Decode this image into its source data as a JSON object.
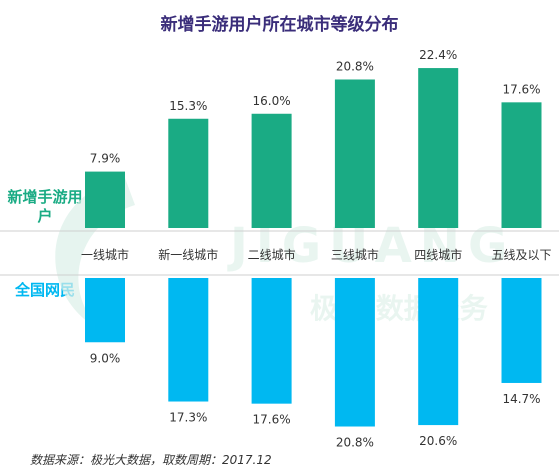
{
  "title": "新增手游用户所在城市等级分布",
  "footer": "数据来源：极光大数据，取数周期：2017.12",
  "watermark": {
    "brand": "JIGUANG",
    "tagline": "极光 数据服务"
  },
  "colors": {
    "new_users": "#1aab84",
    "national": "#00b8f1",
    "title": "#3a2d7a",
    "divider": "#cfcfcf"
  },
  "chart_data": {
    "type": "bar",
    "categories": [
      "一线城市",
      "新一线城市",
      "二线城市",
      "三线城市",
      "四线城市",
      "五线及以下"
    ],
    "series": [
      {
        "name": "新增手游用户",
        "values": [
          7.9,
          15.3,
          16.0,
          20.8,
          22.4,
          17.6
        ],
        "labels": [
          "7.9%",
          "15.3%",
          "16.0%",
          "20.8%",
          "22.4%",
          "17.6%"
        ],
        "direction": "up"
      },
      {
        "name": "全国网民",
        "values": [
          9.0,
          17.3,
          17.6,
          20.8,
          20.6,
          14.7
        ],
        "labels": [
          "9.0%",
          "17.3%",
          "17.6%",
          "20.8%",
          "20.6%",
          "14.7%"
        ],
        "direction": "down"
      }
    ],
    "ylim": [
      0,
      25
    ],
    "grid": false,
    "legend": "left"
  }
}
